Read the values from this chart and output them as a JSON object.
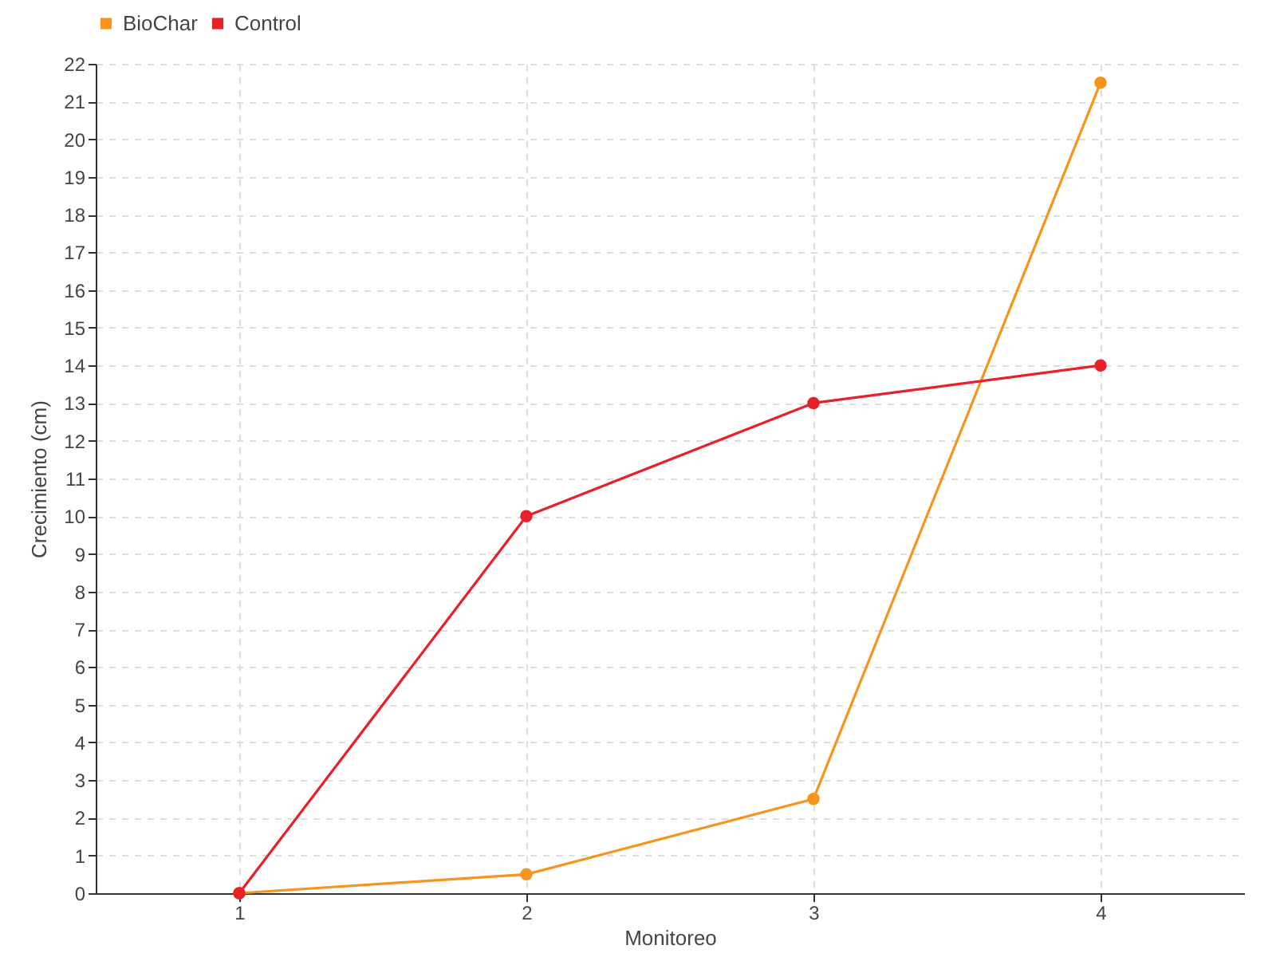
{
  "chart_data": {
    "type": "line",
    "xlabel": "Monitoreo",
    "ylabel": "Crecimiento (cm)",
    "x": [
      1,
      2,
      3,
      4
    ],
    "xlim": [
      0.5,
      4.5
    ],
    "xticks": [
      1,
      2,
      3,
      4
    ],
    "ylim": [
      0,
      22
    ],
    "yticks": [
      0,
      1,
      2,
      3,
      4,
      5,
      6,
      7,
      8,
      9,
      10,
      11,
      12,
      13,
      14,
      15,
      16,
      17,
      18,
      19,
      20,
      21,
      22
    ],
    "series": [
      {
        "name": "BioChar",
        "color": "#f7941d",
        "values": [
          0,
          0.5,
          2.5,
          21.5
        ]
      },
      {
        "name": "Control",
        "color": "#e8202a",
        "values": [
          0,
          10,
          13,
          14
        ]
      }
    ],
    "grid": true,
    "legend": "top left",
    "marker": "circle",
    "line_style": "solid"
  }
}
